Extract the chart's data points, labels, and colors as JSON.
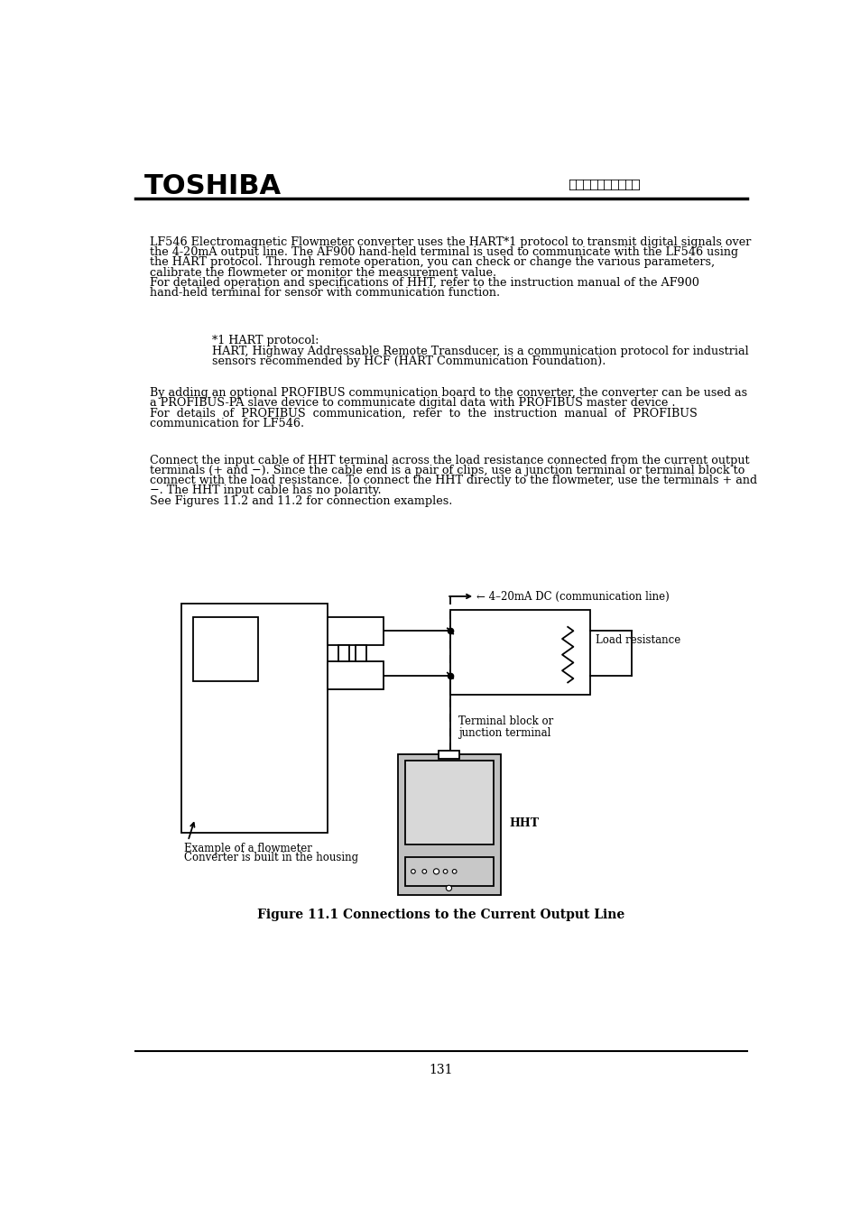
{
  "title": "TOSHIBA",
  "page_number": "131",
  "background_color": "#ffffff",
  "text_color": "#000000",
  "para1_line1": "LF546 Electromagnetic Flowmeter converter uses the HART*1 protocol to transmit digital signals over",
  "para1_line2": "the 4-20mA output line. The AF900 hand-held terminal is used to communicate with the LF546 using",
  "para1_line3": "the HART protocol. Through remote operation, you can check or change the various parameters,",
  "para1_line4": "calibrate the flowmeter or monitor the measurement value.",
  "para1_line5": "For detailed operation and specifications of HHT, refer to the instruction manual of the AF900",
  "para1_line6": "hand-held terminal for sensor with communication function.",
  "para2_line1": "*1 HART protocol:",
  "para2_line2": "HART, Highway Addressable Remote Transducer, is a communication protocol for industrial",
  "para2_line3": "sensors recommended by HCF (HART Communication Foundation).",
  "para3_line1": "By adding an optional PROFIBUS communication board to the converter, the converter can be used as",
  "para3_line2": "a PROFIBUS-PA slave device to communicate digital data with PROFIBUS master device .",
  "para3_line3": "For  details  of  PROFIBUS  communication,  refer  to  the  instruction  manual  of  PROFIBUS",
  "para3_line4": "communication for LF546.",
  "para4_line1": "Connect the input cable of HHT terminal across the load resistance connected from the current output",
  "para4_line2": "terminals (+ and −). Since the cable end is a pair of clips, use a junction terminal or terminal block to",
  "para4_line3": "connect with the load resistance. To connect the HHT directly to the flowmeter, use the terminals + and",
  "para4_line4": "−. The HHT input cable has no polarity.",
  "para4_line5": "See Figures 11.2 and 11.2 for connection examples.",
  "figure_caption": "Figure 11.1 Connections to the Current Output Line",
  "label_4_20mA": "← 4–20mA DC (communication line)",
  "label_load": "Load resistance",
  "label_terminal_line1": "Terminal block or",
  "label_terminal_line2": "junction terminal",
  "label_HHT": "HHT",
  "label_flowmeter_line1": "Example of a flowmeter",
  "label_flowmeter_line2": "Converter is built in the housing"
}
